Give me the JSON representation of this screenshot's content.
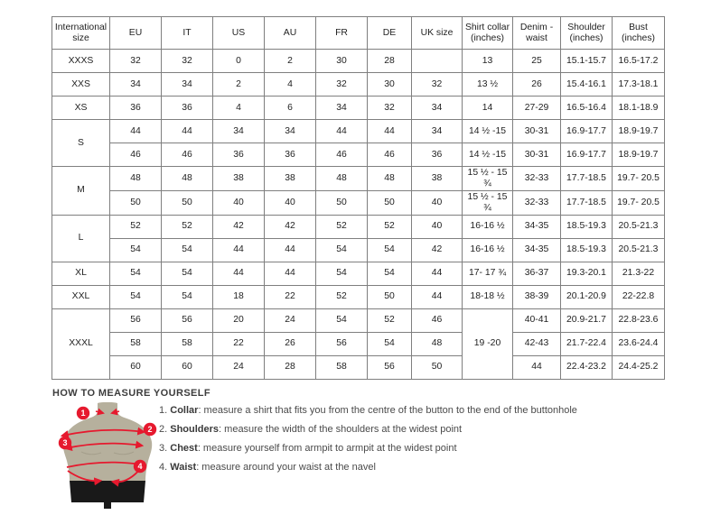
{
  "colors": {
    "accent_red": "#e6192e",
    "torso_tan": "#b6b09d",
    "shorts_black": "#191919",
    "table_border": "#7f7f7f"
  },
  "table": {
    "headers": [
      "International size",
      "EU",
      "IT",
      "US",
      "AU",
      "FR",
      "DE",
      "UK size",
      "Shirt collar (inches)",
      "Denim - waist",
      "Shoulder (inches)",
      "Bust (inches)"
    ],
    "rows": [
      {
        "cells": [
          {
            "t": "XXXS"
          },
          {
            "t": "32"
          },
          {
            "t": "32"
          },
          {
            "t": "0"
          },
          {
            "t": "2"
          },
          {
            "t": "30"
          },
          {
            "t": "28"
          },
          {
            "t": ""
          },
          {
            "t": "13"
          },
          {
            "t": "25"
          },
          {
            "t": "15.1-15.7"
          },
          {
            "t": "16.5-17.2"
          }
        ]
      },
      {
        "cells": [
          {
            "t": "XXS"
          },
          {
            "t": "34"
          },
          {
            "t": "34"
          },
          {
            "t": "2"
          },
          {
            "t": "4"
          },
          {
            "t": "32"
          },
          {
            "t": "30"
          },
          {
            "t": "32"
          },
          {
            "t": "13 ½"
          },
          {
            "t": "26"
          },
          {
            "t": "15.4-16.1"
          },
          {
            "t": "17.3-18.1"
          }
        ]
      },
      {
        "cells": [
          {
            "t": "XS"
          },
          {
            "t": "36"
          },
          {
            "t": "36"
          },
          {
            "t": "4"
          },
          {
            "t": "6"
          },
          {
            "t": "34"
          },
          {
            "t": "32"
          },
          {
            "t": "34"
          },
          {
            "t": "14"
          },
          {
            "t": "27-29"
          },
          {
            "t": "16.5-16.4"
          },
          {
            "t": "18.1-18.9"
          }
        ]
      },
      {
        "cells": [
          {
            "t": "S",
            "rs": 2
          },
          {
            "t": "44"
          },
          {
            "t": "44"
          },
          {
            "t": "34"
          },
          {
            "t": "34"
          },
          {
            "t": "44"
          },
          {
            "t": "44"
          },
          {
            "t": "34"
          },
          {
            "t": "14 ½ -15"
          },
          {
            "t": "30-31"
          },
          {
            "t": "16.9-17.7"
          },
          {
            "t": "18.9-19.7"
          }
        ]
      },
      {
        "cells": [
          {
            "t": "46"
          },
          {
            "t": "46"
          },
          {
            "t": "36"
          },
          {
            "t": "36"
          },
          {
            "t": "46"
          },
          {
            "t": "46"
          },
          {
            "t": "36"
          },
          {
            "t": "14 ½ -15"
          },
          {
            "t": "30-31"
          },
          {
            "t": "16.9-17.7"
          },
          {
            "t": "18.9-19.7"
          }
        ]
      },
      {
        "cells": [
          {
            "t": "M",
            "rs": 2
          },
          {
            "t": "48"
          },
          {
            "t": "48"
          },
          {
            "t": "38"
          },
          {
            "t": "38"
          },
          {
            "t": "48"
          },
          {
            "t": "48"
          },
          {
            "t": "38"
          },
          {
            "t": "15 ½ - 15 ¾"
          },
          {
            "t": "32-33"
          },
          {
            "t": "17.7-18.5"
          },
          {
            "t": "19.7- 20.5"
          }
        ]
      },
      {
        "cells": [
          {
            "t": "50"
          },
          {
            "t": "50"
          },
          {
            "t": "40"
          },
          {
            "t": "40"
          },
          {
            "t": "50"
          },
          {
            "t": "50"
          },
          {
            "t": "40"
          },
          {
            "t": "15 ½ - 15 ¾"
          },
          {
            "t": "32-33"
          },
          {
            "t": "17.7-18.5"
          },
          {
            "t": "19.7- 20.5"
          }
        ]
      },
      {
        "cells": [
          {
            "t": "L",
            "rs": 2
          },
          {
            "t": "52"
          },
          {
            "t": "52"
          },
          {
            "t": "42"
          },
          {
            "t": "42"
          },
          {
            "t": "52"
          },
          {
            "t": "52"
          },
          {
            "t": "40"
          },
          {
            "t": "16-16 ½"
          },
          {
            "t": "34-35"
          },
          {
            "t": "18.5-19.3"
          },
          {
            "t": "20.5-21.3"
          }
        ]
      },
      {
        "cells": [
          {
            "t": "54"
          },
          {
            "t": "54"
          },
          {
            "t": "44"
          },
          {
            "t": "44"
          },
          {
            "t": "54"
          },
          {
            "t": "54"
          },
          {
            "t": "42"
          },
          {
            "t": "16-16 ½"
          },
          {
            "t": "34-35"
          },
          {
            "t": "18.5-19.3"
          },
          {
            "t": "20.5-21.3"
          }
        ]
      },
      {
        "cells": [
          {
            "t": "XL"
          },
          {
            "t": "54"
          },
          {
            "t": "54"
          },
          {
            "t": "44"
          },
          {
            "t": "44"
          },
          {
            "t": "54"
          },
          {
            "t": "54"
          },
          {
            "t": "44"
          },
          {
            "t": "17- 17 ¾"
          },
          {
            "t": "36-37"
          },
          {
            "t": "19.3-20.1"
          },
          {
            "t": "21.3-22"
          }
        ]
      },
      {
        "cells": [
          {
            "t": "XXL"
          },
          {
            "t": "54"
          },
          {
            "t": "54"
          },
          {
            "t": "18"
          },
          {
            "t": "22"
          },
          {
            "t": "52"
          },
          {
            "t": "50"
          },
          {
            "t": "44"
          },
          {
            "t": "18-18 ½"
          },
          {
            "t": "38-39"
          },
          {
            "t": "20.1-20.9"
          },
          {
            "t": "22-22.8"
          }
        ]
      },
      {
        "cells": [
          {
            "t": "XXXL",
            "rs": 3
          },
          {
            "t": "56"
          },
          {
            "t": "56"
          },
          {
            "t": "20"
          },
          {
            "t": "24"
          },
          {
            "t": "54"
          },
          {
            "t": "52"
          },
          {
            "t": "46"
          },
          {
            "t": "19 -20",
            "rs": 3
          },
          {
            "t": "40-41"
          },
          {
            "t": "20.9-21.7"
          },
          {
            "t": "22.8-23.6"
          }
        ]
      },
      {
        "cells": [
          {
            "t": "58"
          },
          {
            "t": "58"
          },
          {
            "t": "22"
          },
          {
            "t": "26"
          },
          {
            "t": "56"
          },
          {
            "t": "54"
          },
          {
            "t": "48"
          },
          {
            "t": "42-43"
          },
          {
            "t": "21.7-22.4"
          },
          {
            "t": "23.6-24.4"
          }
        ]
      },
      {
        "cells": [
          {
            "t": "60"
          },
          {
            "t": "60"
          },
          {
            "t": "24"
          },
          {
            "t": "28"
          },
          {
            "t": "58"
          },
          {
            "t": "56"
          },
          {
            "t": "50"
          },
          {
            "t": "44"
          },
          {
            "t": "22.4-23.2"
          },
          {
            "t": "24.4-25.2"
          }
        ]
      }
    ]
  },
  "measure_guide": {
    "title": "HOW TO MEASURE YOURSELF",
    "steps": [
      {
        "num": "1.",
        "label": "Collar",
        "text": ": measure a shirt that fits you from the centre of the button to the end of the buttonhole"
      },
      {
        "num": "2.",
        "label": "Shoulders",
        "text": ": measure the width of the shoulders at the widest point"
      },
      {
        "num": "3.",
        "label": "Chest",
        "text": ": measure yourself from armpit to armpit at the widest point"
      },
      {
        "num": "4.",
        "label": "Waist",
        "text": ": measure around your waist at the navel"
      }
    ]
  },
  "figure": {
    "badges": [
      "1",
      "2",
      "3",
      "4"
    ]
  }
}
